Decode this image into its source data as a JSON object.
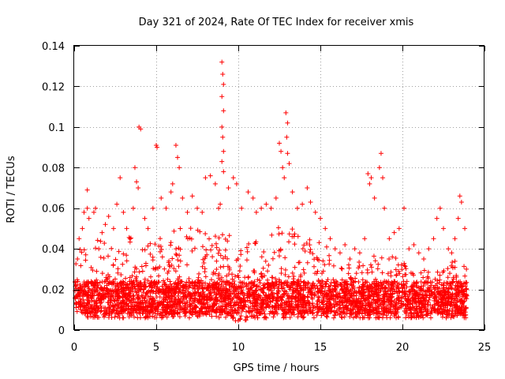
{
  "chart_data": {
    "type": "scatter",
    "title": "Day 321 of 2024, Rate Of TEC Index for receiver xmis",
    "xlabel": "GPS time / hours",
    "ylabel": "ROTI / TECUs",
    "xlim": [
      0,
      25
    ],
    "ylim": [
      0,
      0.14
    ],
    "xticks": [
      0,
      5,
      10,
      15,
      20,
      25
    ],
    "xtick_labels": [
      "0",
      "5",
      "10",
      "15",
      "20",
      "25"
    ],
    "yticks": [
      0,
      0.02,
      0.04,
      0.06,
      0.08,
      0.1,
      0.12,
      0.14
    ],
    "ytick_labels": [
      "0",
      "0.02",
      "0.04",
      "0.06",
      "0.08",
      "0.1",
      "0.12",
      "0.14"
    ],
    "grid": true,
    "marker": "plus",
    "color": "#ff0000",
    "series": [
      {
        "points": [
          [
            0.1,
            0.022
          ],
          [
            0.2,
            0.035
          ],
          [
            0.3,
            0.045
          ],
          [
            0.5,
            0.05
          ],
          [
            0.6,
            0.058
          ],
          [
            0.8,
            0.06
          ],
          [
            0.8,
            0.069
          ],
          [
            0.9,
            0.055
          ],
          [
            1.2,
            0.058
          ],
          [
            1.3,
            0.06
          ],
          [
            1.5,
            0.04
          ],
          [
            1.7,
            0.048
          ],
          [
            1.9,
            0.052
          ],
          [
            2.1,
            0.056
          ],
          [
            2.4,
            0.05
          ],
          [
            2.6,
            0.062
          ],
          [
            2.8,
            0.075
          ],
          [
            3.0,
            0.058
          ],
          [
            3.2,
            0.05
          ],
          [
            3.4,
            0.045
          ],
          [
            3.6,
            0.06
          ],
          [
            3.7,
            0.08
          ],
          [
            3.8,
            0.073
          ],
          [
            3.9,
            0.07
          ],
          [
            3.95,
            0.1
          ],
          [
            4.05,
            0.099
          ],
          [
            4.3,
            0.055
          ],
          [
            4.5,
            0.05
          ],
          [
            4.8,
            0.06
          ],
          [
            5.0,
            0.091
          ],
          [
            5.05,
            0.09
          ],
          [
            5.3,
            0.065
          ],
          [
            5.6,
            0.06
          ],
          [
            5.9,
            0.068
          ],
          [
            6.0,
            0.072
          ],
          [
            6.2,
            0.091
          ],
          [
            6.3,
            0.085
          ],
          [
            6.4,
            0.08
          ],
          [
            6.6,
            0.065
          ],
          [
            6.9,
            0.058
          ],
          [
            7.2,
            0.066
          ],
          [
            7.5,
            0.06
          ],
          [
            7.8,
            0.058
          ],
          [
            8.0,
            0.075
          ],
          [
            8.3,
            0.076
          ],
          [
            8.6,
            0.072
          ],
          [
            8.8,
            0.06
          ],
          [
            8.9,
            0.062
          ],
          [
            9.0,
            0.132
          ],
          [
            9.05,
            0.126
          ],
          [
            9.1,
            0.121
          ],
          [
            9.0,
            0.115
          ],
          [
            9.1,
            0.108
          ],
          [
            9.0,
            0.1
          ],
          [
            9.05,
            0.095
          ],
          [
            9.1,
            0.088
          ],
          [
            9.0,
            0.083
          ],
          [
            9.1,
            0.078
          ],
          [
            9.4,
            0.07
          ],
          [
            9.7,
            0.075
          ],
          [
            9.9,
            0.072
          ],
          [
            10.2,
            0.06
          ],
          [
            10.6,
            0.068
          ],
          [
            10.9,
            0.065
          ],
          [
            11.1,
            0.058
          ],
          [
            11.4,
            0.06
          ],
          [
            11.7,
            0.062
          ],
          [
            12.0,
            0.06
          ],
          [
            12.3,
            0.065
          ],
          [
            12.5,
            0.092
          ],
          [
            12.6,
            0.088
          ],
          [
            12.7,
            0.08
          ],
          [
            12.8,
            0.075
          ],
          [
            12.9,
            0.107
          ],
          [
            13.0,
            0.102
          ],
          [
            12.95,
            0.095
          ],
          [
            13.0,
            0.087
          ],
          [
            13.1,
            0.082
          ],
          [
            13.3,
            0.068
          ],
          [
            13.6,
            0.06
          ],
          [
            13.9,
            0.062
          ],
          [
            14.2,
            0.07
          ],
          [
            14.4,
            0.063
          ],
          [
            14.7,
            0.058
          ],
          [
            15.0,
            0.055
          ],
          [
            15.3,
            0.05
          ],
          [
            15.6,
            0.045
          ],
          [
            15.9,
            0.04
          ],
          [
            16.2,
            0.038
          ],
          [
            16.5,
            0.042
          ],
          [
            16.8,
            0.035
          ],
          [
            17.1,
            0.04
          ],
          [
            17.4,
            0.038
          ],
          [
            17.7,
            0.045
          ],
          [
            17.9,
            0.077
          ],
          [
            18.0,
            0.072
          ],
          [
            18.1,
            0.075
          ],
          [
            18.3,
            0.065
          ],
          [
            18.6,
            0.08
          ],
          [
            18.7,
            0.087
          ],
          [
            18.8,
            0.075
          ],
          [
            18.9,
            0.06
          ],
          [
            19.2,
            0.045
          ],
          [
            19.5,
            0.048
          ],
          [
            19.8,
            0.05
          ],
          [
            20.1,
            0.06
          ],
          [
            20.4,
            0.04
          ],
          [
            20.7,
            0.042
          ],
          [
            21.0,
            0.038
          ],
          [
            21.3,
            0.035
          ],
          [
            21.6,
            0.04
          ],
          [
            21.9,
            0.045
          ],
          [
            22.1,
            0.055
          ],
          [
            22.3,
            0.06
          ],
          [
            22.5,
            0.05
          ],
          [
            22.8,
            0.04
          ],
          [
            23.0,
            0.038
          ],
          [
            23.2,
            0.045
          ],
          [
            23.4,
            0.055
          ],
          [
            23.5,
            0.066
          ],
          [
            23.6,
            0.063
          ],
          [
            23.8,
            0.05
          ],
          [
            23.9,
            0.03
          ]
        ]
      }
    ],
    "density_envelope": {
      "x": [
        0,
        1,
        2,
        3,
        4,
        5,
        6,
        7,
        8,
        9,
        10,
        11,
        12,
        13,
        14,
        15,
        16,
        17,
        18,
        19,
        20,
        21,
        22,
        23,
        24
      ],
      "upper": [
        0.04,
        0.048,
        0.042,
        0.046,
        0.045,
        0.048,
        0.05,
        0.052,
        0.048,
        0.05,
        0.044,
        0.046,
        0.05,
        0.052,
        0.05,
        0.046,
        0.034,
        0.032,
        0.036,
        0.038,
        0.034,
        0.028,
        0.032,
        0.036,
        0.03
      ],
      "lower": [
        0.006,
        0.006,
        0.006,
        0.006,
        0.006,
        0.006,
        0.006,
        0.006,
        0.006,
        0.006,
        0.004,
        0.006,
        0.006,
        0.006,
        0.006,
        0.006,
        0.006,
        0.006,
        0.006,
        0.006,
        0.006,
        0.006,
        0.006,
        0.006,
        0.006
      ]
    }
  }
}
